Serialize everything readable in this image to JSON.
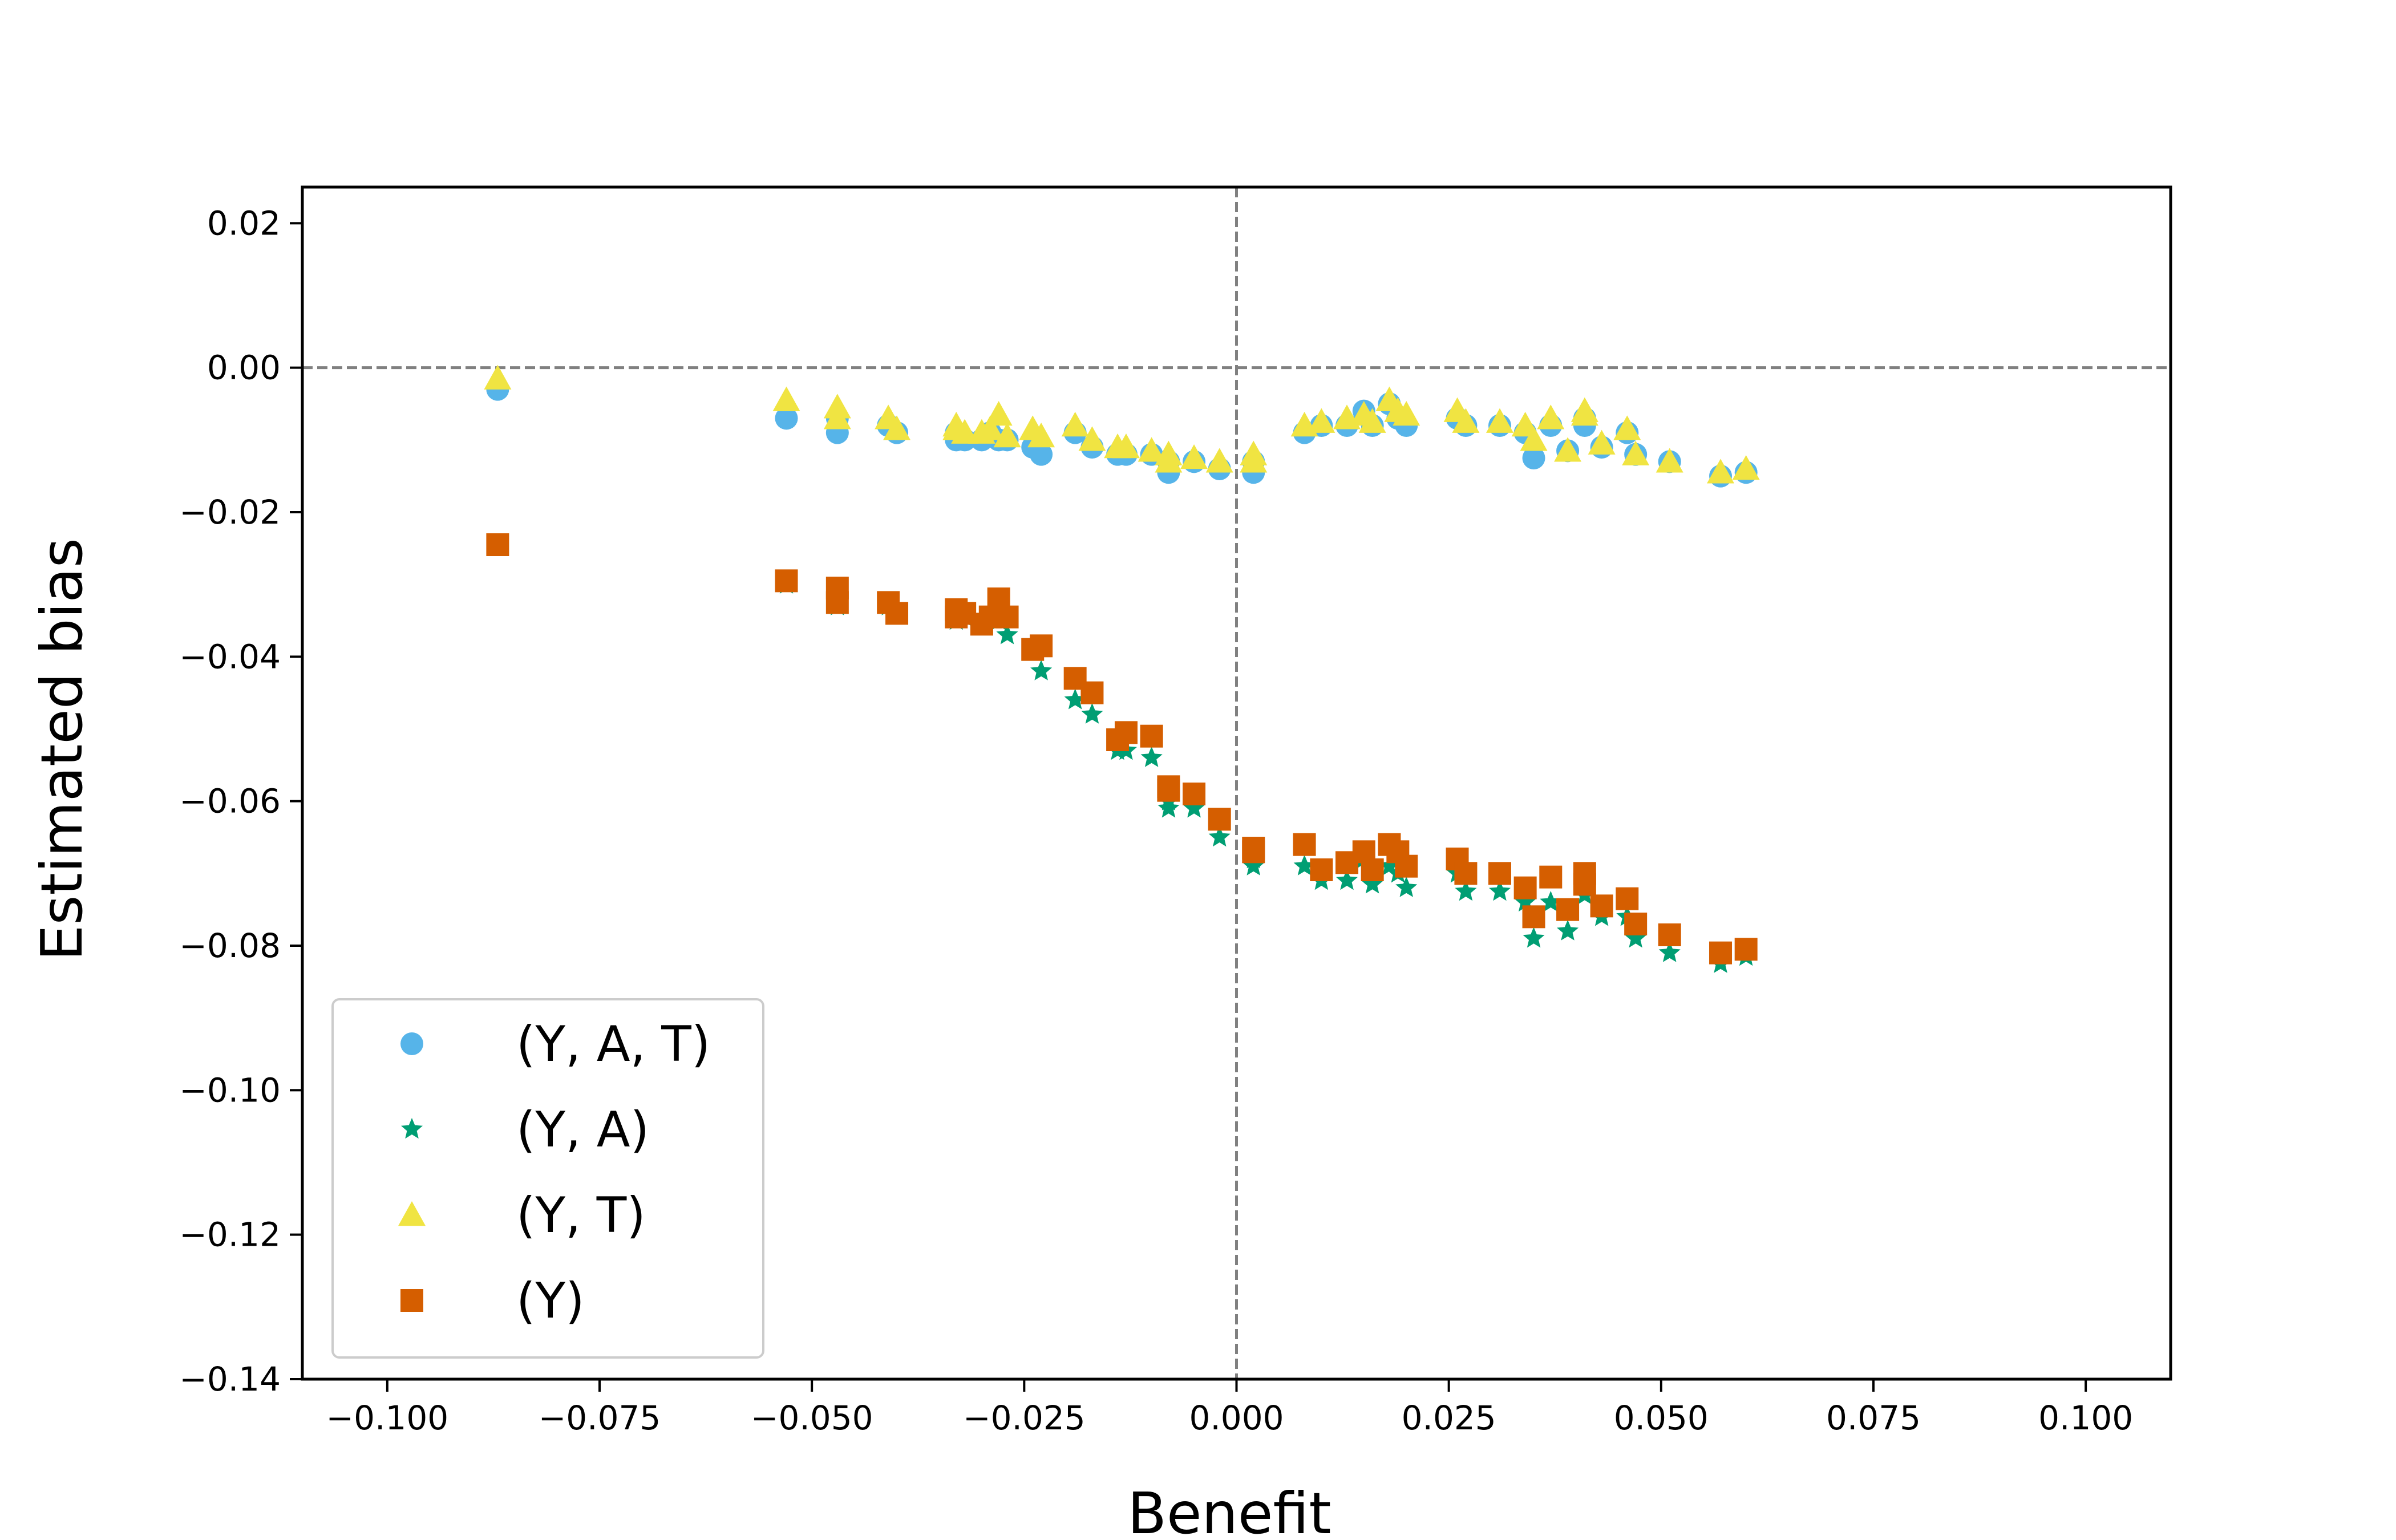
{
  "chart_data": {
    "type": "scatter",
    "xlabel": "Benefit",
    "ylabel": "Estimated bias",
    "xlim": [
      -0.11,
      0.11
    ],
    "ylim": [
      -0.14,
      0.025
    ],
    "xticks": [
      -0.1,
      -0.075,
      -0.05,
      -0.025,
      0.0,
      0.025,
      0.05,
      0.075,
      0.1
    ],
    "xtick_labels": [
      "−0.100",
      "−0.075",
      "−0.050",
      "−0.025",
      "0.000",
      "0.025",
      "0.050",
      "0.075",
      "0.100"
    ],
    "yticks": [
      0.02,
      0.0,
      -0.02,
      -0.04,
      -0.06,
      -0.08,
      -0.1,
      -0.12,
      -0.14
    ],
    "ytick_labels": [
      "0.02",
      "0.00",
      "−0.02",
      "−0.04",
      "−0.06",
      "−0.08",
      "−0.10",
      "−0.12",
      "−0.14"
    ],
    "reference_lines": {
      "x": 0.0,
      "y": 0.0,
      "style": "dashed",
      "color": "#808080"
    },
    "legend_position": "lower-left",
    "x": [
      -0.087,
      -0.053,
      -0.047,
      -0.047,
      -0.041,
      -0.04,
      -0.033,
      -0.033,
      -0.032,
      -0.03,
      -0.029,
      -0.028,
      -0.027,
      -0.024,
      -0.023,
      -0.019,
      -0.017,
      -0.014,
      -0.013,
      -0.01,
      -0.008,
      -0.008,
      -0.005,
      -0.002,
      0.002,
      0.002,
      0.008,
      0.01,
      0.013,
      0.015,
      0.016,
      0.018,
      0.019,
      0.02,
      0.026,
      0.027,
      0.031,
      0.034,
      0.035,
      0.037,
      0.039,
      0.041,
      0.041,
      0.043,
      0.046,
      0.047,
      0.051,
      0.057,
      0.06
    ],
    "series": [
      {
        "name": "(Y, A, T)",
        "marker": "circle",
        "color": "#56B4E9",
        "values": [
          -0.003,
          -0.007,
          -0.007,
          -0.009,
          -0.008,
          -0.009,
          -0.01,
          -0.009,
          -0.01,
          -0.01,
          -0.009,
          -0.01,
          -0.01,
          -0.011,
          -0.012,
          -0.009,
          -0.011,
          -0.012,
          -0.012,
          -0.012,
          -0.013,
          -0.0145,
          -0.013,
          -0.014,
          -0.013,
          -0.0145,
          -0.009,
          -0.008,
          -0.008,
          -0.006,
          -0.008,
          -0.005,
          -0.007,
          -0.008,
          -0.007,
          -0.008,
          -0.008,
          -0.009,
          -0.0125,
          -0.008,
          -0.0115,
          -0.007,
          -0.008,
          -0.011,
          -0.009,
          -0.012,
          -0.013,
          -0.015,
          -0.0145
        ]
      },
      {
        "name": "(Y, A)",
        "marker": "star",
        "color": "#009E73",
        "values": [
          -0.0245,
          -0.03,
          -0.031,
          -0.033,
          -0.033,
          -0.034,
          -0.034,
          -0.035,
          -0.0345,
          -0.035,
          -0.034,
          -0.035,
          -0.037,
          -0.039,
          -0.042,
          -0.046,
          -0.048,
          -0.053,
          -0.053,
          -0.054,
          -0.06,
          -0.061,
          -0.061,
          -0.065,
          -0.069,
          -0.068,
          -0.069,
          -0.071,
          -0.071,
          -0.068,
          -0.0715,
          -0.069,
          -0.07,
          -0.072,
          -0.07,
          -0.0725,
          -0.0725,
          -0.074,
          -0.079,
          -0.074,
          -0.078,
          -0.071,
          -0.073,
          -0.076,
          -0.076,
          -0.079,
          -0.081,
          -0.0825,
          -0.0815
        ]
      },
      {
        "name": "(Y, T)",
        "marker": "triangle",
        "color": "#F0E442",
        "values": [
          -0.0015,
          -0.0045,
          -0.0055,
          -0.007,
          -0.007,
          -0.0085,
          -0.008,
          -0.0085,
          -0.009,
          -0.009,
          -0.0085,
          -0.0065,
          -0.0095,
          -0.0085,
          -0.0095,
          -0.008,
          -0.01,
          -0.011,
          -0.011,
          -0.0115,
          -0.012,
          -0.013,
          -0.0125,
          -0.013,
          -0.012,
          -0.013,
          -0.008,
          -0.0075,
          -0.007,
          -0.0065,
          -0.0075,
          -0.0045,
          -0.006,
          -0.0065,
          -0.006,
          -0.0075,
          -0.0075,
          -0.008,
          -0.01,
          -0.007,
          -0.0115,
          -0.006,
          -0.0065,
          -0.0105,
          -0.0085,
          -0.012,
          -0.013,
          -0.0145,
          -0.014
        ]
      },
      {
        "name": "(Y)",
        "marker": "square",
        "color": "#D55E00",
        "values": [
          -0.0245,
          -0.0295,
          -0.0305,
          -0.0325,
          -0.0325,
          -0.034,
          -0.0335,
          -0.0345,
          -0.034,
          -0.0355,
          -0.0345,
          -0.032,
          -0.0345,
          -0.039,
          -0.0385,
          -0.043,
          -0.045,
          -0.0515,
          -0.0505,
          -0.051,
          -0.058,
          -0.0585,
          -0.059,
          -0.0625,
          -0.067,
          -0.0665,
          -0.066,
          -0.0695,
          -0.0685,
          -0.067,
          -0.0695,
          -0.066,
          -0.067,
          -0.069,
          -0.068,
          -0.07,
          -0.07,
          -0.072,
          -0.076,
          -0.0705,
          -0.075,
          -0.07,
          -0.0715,
          -0.0745,
          -0.0735,
          -0.077,
          -0.0785,
          -0.081,
          -0.0805
        ]
      }
    ]
  }
}
